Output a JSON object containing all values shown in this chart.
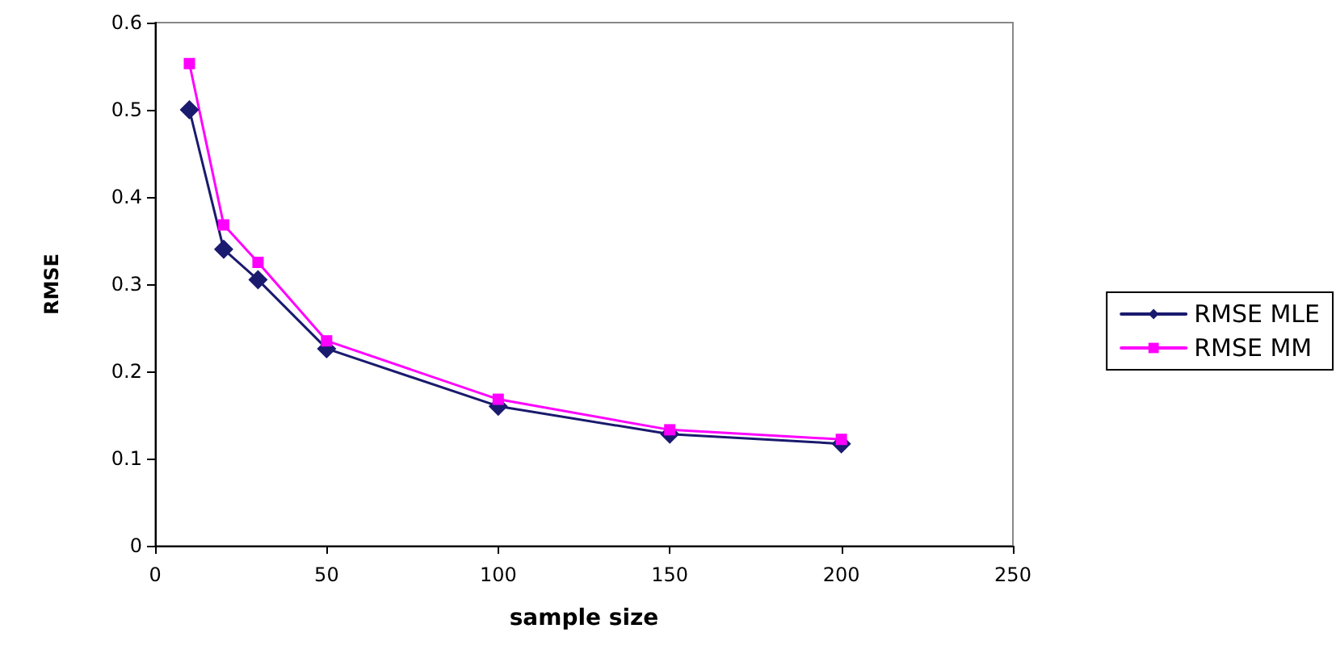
{
  "chart_data": {
    "type": "line",
    "xlabel": "sample size",
    "ylabel": "RMSE",
    "x": [
      10,
      20,
      30,
      50,
      100,
      150,
      200
    ],
    "series": [
      {
        "name": "RMSE MLE",
        "color": "#1a1a6e",
        "marker": "diamond",
        "values": [
          0.5,
          0.34,
          0.305,
          0.226,
          0.16,
          0.128,
          0.117
        ]
      },
      {
        "name": "RMSE MM",
        "color": "#ff00ff",
        "marker": "square",
        "values": [
          0.553,
          0.368,
          0.325,
          0.235,
          0.168,
          0.133,
          0.122
        ]
      }
    ],
    "xlim": [
      0,
      250
    ],
    "xticks": [
      0,
      50,
      100,
      150,
      200,
      250
    ],
    "ylim": [
      0,
      0.6
    ],
    "yticks": [
      0,
      0.1,
      0.2,
      0.3,
      0.4,
      0.5,
      0.6
    ],
    "legend": "right",
    "line_style": "solid"
  }
}
